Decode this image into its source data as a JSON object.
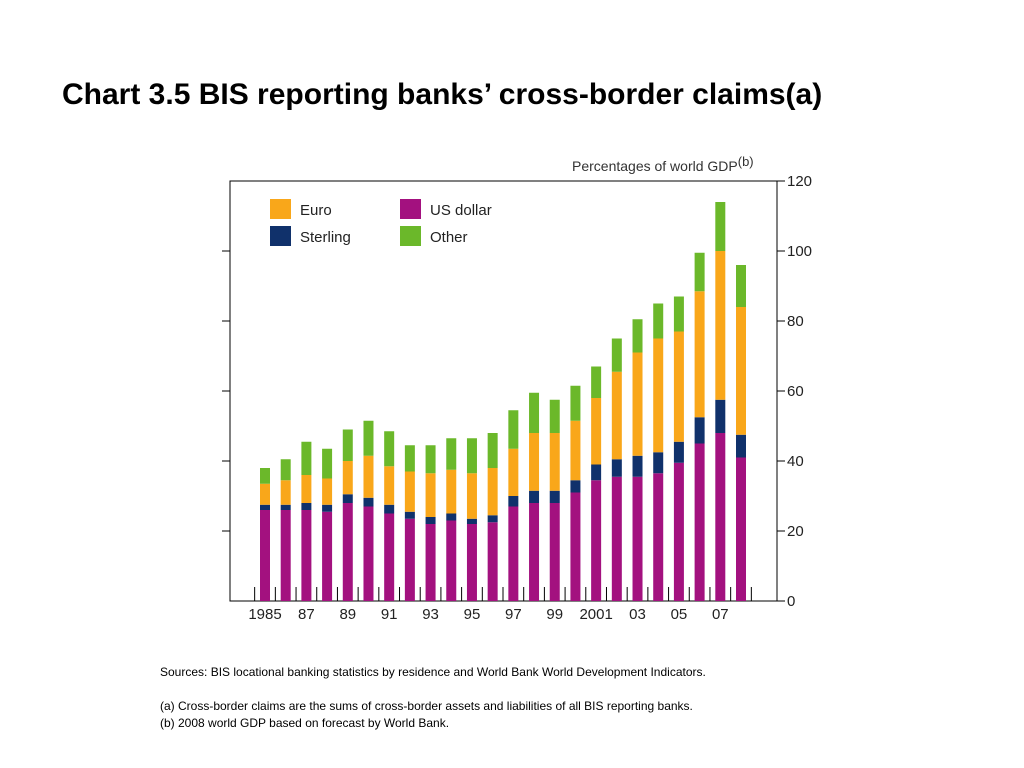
{
  "title": "Chart 3.5 BIS reporting banks’ cross-border claims(a)",
  "chart_data": {
    "type": "bar",
    "stacked": true,
    "unit_label": "Percentages of world GDP",
    "unit_note": "(b)",
    "ylim": [
      0,
      120
    ],
    "yticks": [
      "0",
      "20",
      "40",
      "60",
      "80",
      "100",
      "120"
    ],
    "xtick_labels": [
      "1985",
      "87",
      "89",
      "91",
      "93",
      "95",
      "97",
      "99",
      "2001",
      "03",
      "05",
      "07"
    ],
    "years": [
      1985,
      1986,
      1987,
      1988,
      1989,
      1990,
      1991,
      1992,
      1993,
      1994,
      1995,
      1996,
      1997,
      1998,
      1999,
      2000,
      2001,
      2002,
      2003,
      2004,
      2005,
      2006,
      2007,
      2008
    ],
    "legend_placement": "top-left",
    "series": [
      {
        "name": "US dollar",
        "color": "#a3117f",
        "values": [
          26,
          26,
          26,
          25.5,
          28,
          27,
          25,
          23.5,
          22,
          23,
          22,
          22.5,
          27,
          28,
          28,
          31,
          34.5,
          35.5,
          35.5,
          36.5,
          39.5,
          45,
          48,
          41
        ]
      },
      {
        "name": "Sterling",
        "color": "#10316b",
        "values": [
          1.5,
          1.5,
          2,
          2,
          2.5,
          2.5,
          2.5,
          2,
          2,
          2,
          1.5,
          2,
          3,
          3.5,
          3.5,
          3.5,
          4.5,
          5,
          6,
          6,
          6,
          7.5,
          9.5,
          6.5
        ]
      },
      {
        "name": "Euro",
        "color": "#f9a71a",
        "values": [
          6,
          7,
          8,
          7.5,
          9.5,
          12,
          11,
          11.5,
          12.5,
          12.5,
          13,
          13.5,
          13.5,
          16.5,
          16.5,
          17,
          19,
          25,
          29.5,
          32.5,
          31.5,
          36,
          42.5,
          36.5
        ]
      },
      {
        "name": "Other",
        "color": "#6bb82a",
        "values": [
          4.5,
          6,
          9.5,
          8.5,
          9,
          10,
          10,
          7.5,
          8,
          9,
          10,
          10,
          11,
          11.5,
          9.5,
          10,
          9,
          9.5,
          9.5,
          10,
          10,
          11,
          14,
          12
        ]
      }
    ]
  },
  "sources": "Sources:  BIS locational banking statistics by residence and World Bank World Development Indicators.",
  "note_a": "(a)  Cross-border claims are the sums of cross-border assets and liabilities of all BIS reporting banks.",
  "note_b": "(b)  2008 world GDP based on forecast by World Bank."
}
